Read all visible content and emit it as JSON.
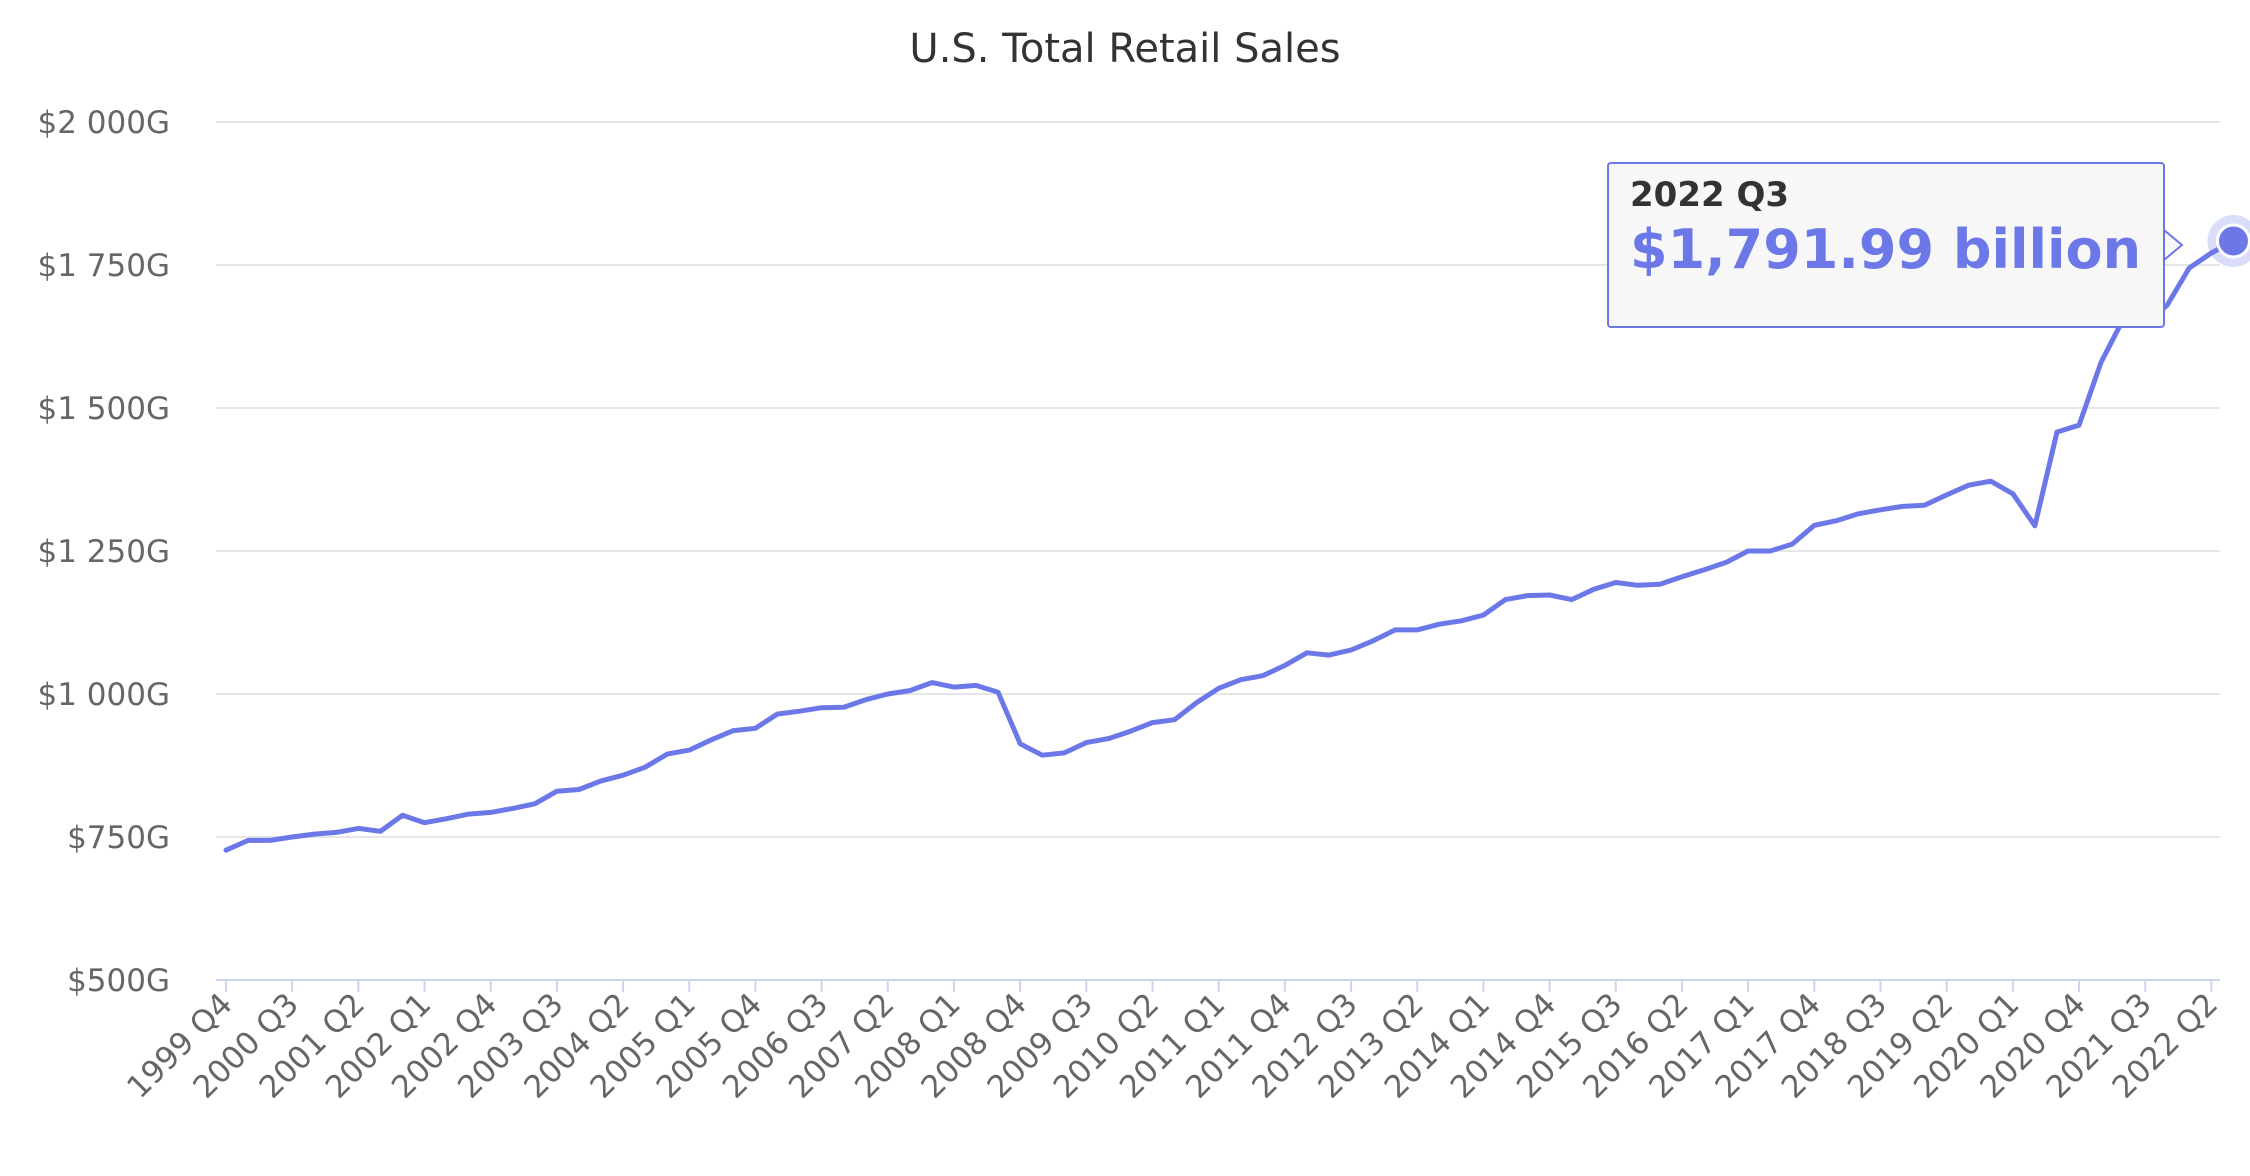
{
  "chart_data": {
    "type": "line",
    "title": "U.S. Total Retail Sales",
    "xlabel": "",
    "ylabel": "",
    "ylim": [
      500,
      2000
    ],
    "y_ticks": [
      {
        "value": 500,
        "label": "$500G"
      },
      {
        "value": 750,
        "label": "$750G"
      },
      {
        "value": 1000,
        "label": "$1 000G"
      },
      {
        "value": 1250,
        "label": "$1 250G"
      },
      {
        "value": 1500,
        "label": "$1 500G"
      },
      {
        "value": 1750,
        "label": "$1 750G"
      },
      {
        "value": 2000,
        "label": "$2 000G"
      }
    ],
    "x_tick_labels": [
      "1999 Q4",
      "2000 Q3",
      "2001 Q2",
      "2002 Q1",
      "2002 Q4",
      "2003 Q3",
      "2004 Q2",
      "2005 Q1",
      "2005 Q4",
      "2006 Q3",
      "2007 Q2",
      "2008 Q1",
      "2008 Q4",
      "2009 Q3",
      "2010 Q2",
      "2011 Q1",
      "2011 Q4",
      "2012 Q3",
      "2013 Q2",
      "2014 Q1",
      "2014 Q4",
      "2015 Q3",
      "2016 Q2",
      "2017 Q1",
      "2017 Q4",
      "2018 Q3",
      "2019 Q2",
      "2020 Q1",
      "2020 Q4",
      "2021 Q3",
      "2022 Q2"
    ],
    "grid": true,
    "legend": "none",
    "line_color": "#6d78e8",
    "series": [
      {
        "values": [
          727,
          744,
          744,
          750,
          755,
          758,
          765,
          760,
          788,
          775,
          782,
          790,
          793,
          800,
          808,
          830,
          833,
          848,
          858,
          872,
          895,
          902,
          920,
          936,
          940,
          965,
          970,
          976,
          977,
          990,
          1000,
          1006,
          1020,
          1012,
          1015,
          1003,
          913,
          893,
          897,
          915,
          922,
          935,
          950,
          955,
          985,
          1010,
          1025,
          1032,
          1050,
          1072,
          1068,
          1077,
          1093,
          1112,
          1112,
          1122,
          1128,
          1138,
          1165,
          1172,
          1173,
          1165,
          1183,
          1195,
          1190,
          1192,
          1205,
          1217,
          1230,
          1250,
          1250,
          1262,
          1295,
          1303,
          1315,
          1322,
          1328,
          1330,
          1348,
          1365,
          1372,
          1350,
          1294,
          1458,
          1470,
          1580,
          1655,
          1645,
          1680,
          1745,
          1771,
          1791.99
        ]
      }
    ],
    "tooltip": {
      "period": "2022 Q3",
      "value_label": "$1,791.99 billion"
    }
  }
}
